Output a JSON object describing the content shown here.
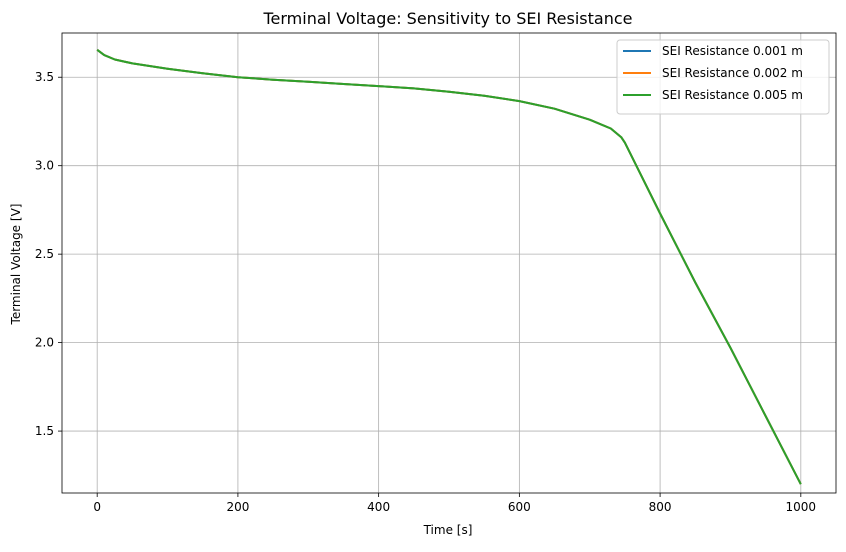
{
  "chart_data": {
    "type": "line",
    "title": "Terminal Voltage: Sensitivity to SEI Resistance",
    "xlabel": "Time [s]",
    "ylabel": "Terminal Voltage [V]",
    "xlim": [
      -50,
      1050
    ],
    "ylim": [
      1.15,
      3.75
    ],
    "xticks": [
      0,
      200,
      400,
      600,
      800,
      1000
    ],
    "yticks": [
      1.5,
      2.0,
      2.5,
      3.0,
      3.5
    ],
    "xtick_labels": [
      "0",
      "200",
      "400",
      "600",
      "800",
      "1000"
    ],
    "ytick_labels": [
      "1.5",
      "2.0",
      "2.5",
      "3.0",
      "3.5"
    ],
    "grid": true,
    "legend_position": "top-right",
    "series": [
      {
        "name": "SEI Resistance 0.001 m",
        "color": "#1f77b4",
        "x": [
          0,
          10,
          25,
          50,
          100,
          150,
          200,
          250,
          300,
          350,
          400,
          450,
          500,
          550,
          600,
          650,
          700,
          730,
          745,
          750,
          800,
          850,
          900,
          950,
          1000
        ],
        "y": [
          3.655,
          3.625,
          3.6,
          3.578,
          3.548,
          3.522,
          3.5,
          3.486,
          3.474,
          3.462,
          3.45,
          3.437,
          3.418,
          3.395,
          3.365,
          3.322,
          3.26,
          3.21,
          3.16,
          3.13,
          2.73,
          2.34,
          1.97,
          1.585,
          1.2
        ]
      },
      {
        "name": "SEI Resistance 0.002 m",
        "color": "#ff7f0e",
        "x": [
          0,
          10,
          25,
          50,
          100,
          150,
          200,
          250,
          300,
          350,
          400,
          450,
          500,
          550,
          600,
          650,
          700,
          730,
          745,
          750,
          800,
          850,
          900,
          950,
          1000
        ],
        "y": [
          3.655,
          3.625,
          3.6,
          3.578,
          3.548,
          3.522,
          3.5,
          3.486,
          3.474,
          3.462,
          3.45,
          3.437,
          3.418,
          3.395,
          3.365,
          3.322,
          3.26,
          3.21,
          3.16,
          3.13,
          2.73,
          2.34,
          1.97,
          1.585,
          1.2
        ]
      },
      {
        "name": "SEI Resistance 0.005 m",
        "color": "#2ca02c",
        "x": [
          0,
          10,
          25,
          50,
          100,
          150,
          200,
          250,
          300,
          350,
          400,
          450,
          500,
          550,
          600,
          650,
          700,
          730,
          745,
          750,
          800,
          850,
          900,
          950,
          1000
        ],
        "y": [
          3.655,
          3.625,
          3.6,
          3.578,
          3.548,
          3.522,
          3.5,
          3.486,
          3.474,
          3.462,
          3.45,
          3.437,
          3.418,
          3.395,
          3.365,
          3.322,
          3.26,
          3.21,
          3.16,
          3.13,
          2.73,
          2.34,
          1.97,
          1.585,
          1.2
        ]
      }
    ]
  }
}
